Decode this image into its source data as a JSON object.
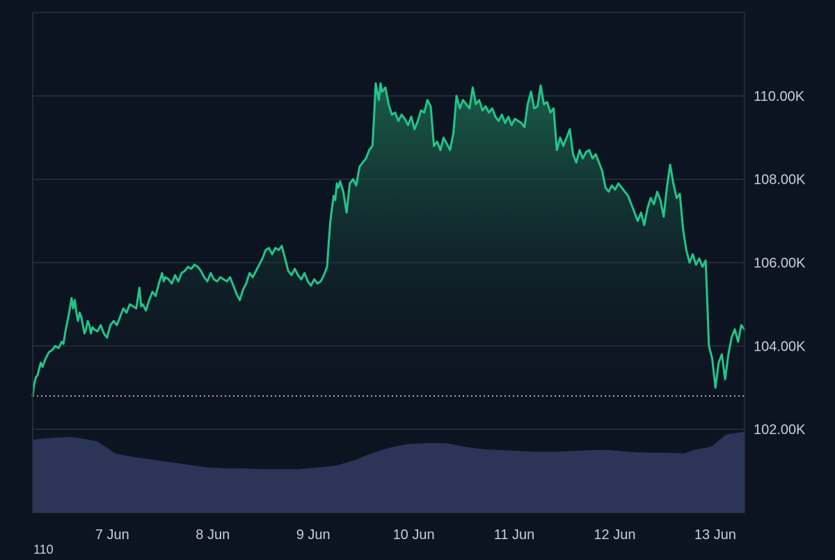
{
  "chart_data": {
    "type": "area",
    "x_tick_labels": [
      "7 Jun",
      "8 Jun",
      "9 Jun",
      "10 Jun",
      "11 Jun",
      "12 Jun",
      "13 Jun"
    ],
    "x_tick_hours": [
      19,
      43,
      67,
      91,
      115,
      139,
      163
    ],
    "x_range_hours": [
      0,
      170
    ],
    "y_tick_labels": [
      "102.00K",
      "104.00K",
      "106.00K",
      "108.00K",
      "110.00K"
    ],
    "y_tick_values": [
      102000,
      104000,
      106000,
      108000,
      110000
    ],
    "ylim": [
      100000,
      112000
    ],
    "reference_value": 102800,
    "colors": {
      "background": "#0d1421",
      "line": "#21c68a",
      "area_top": "#1d6b52",
      "area_bottom": "#0d1421",
      "volume": "#2c3558",
      "grid": "#2b3240",
      "axis_text": "#c9ced8",
      "reference": "#d8dde6"
    },
    "price_series": [
      [
        0,
        102800
      ],
      [
        0.5,
        103100
      ],
      [
        1,
        103250
      ],
      [
        1.5,
        103300
      ],
      [
        2.5,
        103600
      ],
      [
        3,
        103500
      ],
      [
        4,
        103700
      ],
      [
        5,
        103850
      ],
      [
        6,
        103900
      ],
      [
        7,
        104000
      ],
      [
        8,
        103950
      ],
      [
        9,
        104100
      ],
      [
        9.5,
        104050
      ],
      [
        10,
        104300
      ],
      [
        10.5,
        104500
      ],
      [
        11,
        104700
      ],
      [
        11.5,
        104900
      ],
      [
        12,
        105150
      ],
      [
        12.5,
        104900
      ],
      [
        13,
        105100
      ],
      [
        13.5,
        104800
      ],
      [
        14,
        104600
      ],
      [
        14.5,
        104800
      ],
      [
        15,
        104700
      ],
      [
        15.5,
        104500
      ],
      [
        16,
        104300
      ],
      [
        16.5,
        104400
      ],
      [
        17,
        104600
      ],
      [
        17.5,
        104500
      ],
      [
        18,
        104300
      ],
      [
        18.5,
        104450
      ],
      [
        19,
        104400
      ],
      [
        20,
        104350
      ],
      [
        21,
        104500
      ],
      [
        22,
        104300
      ],
      [
        23,
        104200
      ],
      [
        24,
        104500
      ],
      [
        25,
        104600
      ],
      [
        26,
        104500
      ],
      [
        27,
        104700
      ],
      [
        28,
        104900
      ],
      [
        29,
        104800
      ],
      [
        30,
        105000
      ],
      [
        31,
        104950
      ],
      [
        32,
        104900
      ],
      [
        33,
        105400
      ],
      [
        33.5,
        104950
      ],
      [
        34,
        105000
      ],
      [
        35,
        104850
      ],
      [
        36,
        105100
      ],
      [
        37,
        105300
      ],
      [
        38,
        105200
      ],
      [
        39,
        105500
      ],
      [
        40,
        105750
      ],
      [
        40.5,
        105550
      ],
      [
        41,
        105650
      ],
      [
        42,
        105600
      ],
      [
        43,
        105500
      ],
      [
        44,
        105700
      ],
      [
        45,
        105550
      ],
      [
        46,
        105750
      ],
      [
        47,
        105800
      ],
      [
        48,
        105900
      ],
      [
        49,
        105850
      ],
      [
        50,
        105950
      ],
      [
        51,
        105900
      ],
      [
        52,
        105800
      ],
      [
        53,
        105650
      ],
      [
        54,
        105550
      ],
      [
        55,
        105750
      ],
      [
        56,
        105600
      ],
      [
        57,
        105550
      ],
      [
        58,
        105650
      ],
      [
        59,
        105600
      ],
      [
        60,
        105550
      ],
      [
        61,
        105650
      ],
      [
        62,
        105450
      ],
      [
        63,
        105250
      ],
      [
        64,
        105100
      ],
      [
        65,
        105350
      ],
      [
        66,
        105500
      ],
      [
        67,
        105750
      ],
      [
        68,
        105650
      ],
      [
        69,
        105800
      ],
      [
        70,
        105950
      ],
      [
        71,
        106100
      ],
      [
        72,
        106300
      ],
      [
        73,
        106350
      ],
      [
        74,
        106200
      ],
      [
        75,
        106350
      ],
      [
        76,
        106300
      ],
      [
        77,
        106400
      ],
      [
        78,
        106100
      ],
      [
        79,
        105800
      ],
      [
        80,
        105700
      ],
      [
        81,
        105850
      ],
      [
        82,
        105700
      ],
      [
        83,
        105600
      ],
      [
        84,
        105750
      ],
      [
        85,
        105550
      ],
      [
        86,
        105450
      ],
      [
        87,
        105600
      ],
      [
        88,
        105500
      ],
      [
        89,
        105550
      ],
      [
        90,
        105700
      ],
      [
        91,
        105900
      ],
      [
        91.5,
        106500
      ],
      [
        92,
        107000
      ],
      [
        93,
        107600
      ],
      [
        93.5,
        107500
      ],
      [
        94,
        107900
      ],
      [
        94.5,
        107800
      ],
      [
        95,
        107950
      ],
      [
        96,
        107700
      ],
      [
        97,
        107200
      ],
      [
        98,
        107900
      ],
      [
        99,
        108000
      ],
      [
        100,
        107850
      ],
      [
        101,
        108300
      ],
      [
        102,
        108400
      ],
      [
        103,
        108500
      ],
      [
        104,
        108700
      ],
      [
        105,
        108800
      ],
      [
        105.5,
        109500
      ],
      [
        106,
        110300
      ],
      [
        107,
        109900
      ],
      [
        107.5,
        110300
      ],
      [
        108,
        110100
      ],
      [
        109,
        110200
      ],
      [
        110,
        109800
      ],
      [
        111,
        109550
      ],
      [
        112,
        109600
      ],
      [
        113,
        109400
      ],
      [
        114,
        109550
      ],
      [
        115,
        109450
      ],
      [
        116,
        109300
      ],
      [
        117,
        109500
      ],
      [
        118,
        109200
      ],
      [
        119,
        109400
      ],
      [
        120,
        109650
      ],
      [
        121,
        109600
      ],
      [
        122,
        109900
      ],
      [
        123,
        109750
      ],
      [
        124,
        108800
      ],
      [
        125,
        108900
      ],
      [
        126,
        108700
      ],
      [
        127,
        109000
      ],
      [
        128,
        108850
      ],
      [
        129,
        108700
      ],
      [
        130,
        109100
      ],
      [
        131,
        110000
      ],
      [
        132,
        109700
      ],
      [
        133,
        109900
      ],
      [
        134,
        109800
      ],
      [
        135,
        109700
      ],
      [
        136,
        110200
      ],
      [
        137,
        109800
      ],
      [
        138,
        109900
      ],
      [
        139,
        109650
      ],
      [
        140,
        109750
      ],
      [
        141,
        109600
      ],
      [
        142,
        109700
      ],
      [
        143,
        109500
      ],
      [
        144,
        109400
      ],
      [
        145,
        109550
      ],
      [
        146,
        109350
      ],
      [
        147,
        109500
      ],
      [
        148,
        109300
      ],
      [
        149,
        109450
      ],
      [
        150,
        109400
      ],
      [
        151,
        109350
      ],
      [
        152,
        109250
      ],
      [
        153,
        109800
      ],
      [
        154,
        110100
      ],
      [
        155,
        109700
      ],
      [
        156,
        109750
      ],
      [
        157,
        110250
      ],
      [
        158,
        109800
      ],
      [
        159,
        109850
      ],
      [
        160,
        109600
      ],
      [
        161,
        109700
      ],
      [
        162,
        108700
      ],
      [
        163,
        109000
      ],
      [
        164,
        108800
      ],
      [
        165,
        109000
      ],
      [
        166,
        109200
      ],
      [
        167,
        108600
      ],
      [
        168,
        108400
      ],
      [
        169,
        108700
      ],
      [
        170,
        108500
      ],
      [
        171,
        108650
      ],
      [
        172,
        108700
      ],
      [
        173,
        108500
      ],
      [
        174,
        108600
      ],
      [
        175,
        108400
      ],
      [
        176,
        108200
      ],
      [
        177,
        107800
      ],
      [
        178,
        107700
      ],
      [
        179,
        107850
      ],
      [
        180,
        107750
      ],
      [
        181,
        107900
      ],
      [
        182,
        107800
      ],
      [
        183,
        107700
      ],
      [
        184,
        107600
      ],
      [
        185,
        107400
      ],
      [
        186,
        107200
      ],
      [
        187,
        107000
      ],
      [
        188,
        107200
      ],
      [
        189,
        106900
      ],
      [
        190,
        107300
      ],
      [
        191,
        107550
      ],
      [
        192,
        107400
      ],
      [
        193,
        107700
      ],
      [
        194,
        107500
      ],
      [
        195,
        107100
      ],
      [
        196,
        107800
      ],
      [
        197,
        108350
      ],
      [
        198,
        107900
      ],
      [
        199,
        107550
      ],
      [
        200,
        107650
      ],
      [
        201,
        106800
      ],
      [
        202,
        106300
      ],
      [
        203,
        106000
      ],
      [
        204,
        106200
      ],
      [
        205,
        105950
      ],
      [
        206,
        106100
      ],
      [
        207,
        105900
      ],
      [
        208,
        106050
      ],
      [
        209,
        104000
      ],
      [
        210,
        103700
      ],
      [
        211,
        103000
      ],
      [
        212,
        103600
      ],
      [
        213,
        103800
      ],
      [
        214,
        103200
      ],
      [
        215,
        103800
      ],
      [
        216,
        104200
      ],
      [
        217,
        104400
      ],
      [
        218,
        104100
      ],
      [
        219,
        104500
      ],
      [
        220,
        104400
      ]
    ],
    "volume_series": [
      [
        0,
        0.84
      ],
      [
        10,
        0.86
      ],
      [
        20,
        0.87
      ],
      [
        25,
        0.86
      ],
      [
        30,
        0.84
      ],
      [
        35,
        0.82
      ],
      [
        40,
        0.75
      ],
      [
        45,
        0.68
      ],
      [
        55,
        0.64
      ],
      [
        65,
        0.61
      ],
      [
        75,
        0.58
      ],
      [
        85,
        0.55
      ],
      [
        95,
        0.52
      ],
      [
        105,
        0.51
      ],
      [
        115,
        0.51
      ],
      [
        125,
        0.5
      ],
      [
        135,
        0.5
      ],
      [
        145,
        0.5
      ],
      [
        155,
        0.52
      ],
      [
        165,
        0.54
      ],
      [
        175,
        0.6
      ],
      [
        182,
        0.66
      ],
      [
        190,
        0.72
      ],
      [
        197,
        0.76
      ],
      [
        205,
        0.79
      ],
      [
        215,
        0.8
      ],
      [
        225,
        0.8
      ],
      [
        235,
        0.76
      ],
      [
        245,
        0.73
      ],
      [
        255,
        0.72
      ],
      [
        265,
        0.71
      ],
      [
        275,
        0.7
      ],
      [
        285,
        0.7
      ],
      [
        295,
        0.71
      ],
      [
        305,
        0.72
      ],
      [
        315,
        0.72
      ],
      [
        325,
        0.7
      ],
      [
        335,
        0.69
      ],
      [
        345,
        0.69
      ],
      [
        355,
        0.68
      ],
      [
        360,
        0.72
      ],
      [
        370,
        0.76
      ],
      [
        378,
        0.9
      ],
      [
        388,
        0.93
      ]
    ]
  },
  "footer_label": "110"
}
